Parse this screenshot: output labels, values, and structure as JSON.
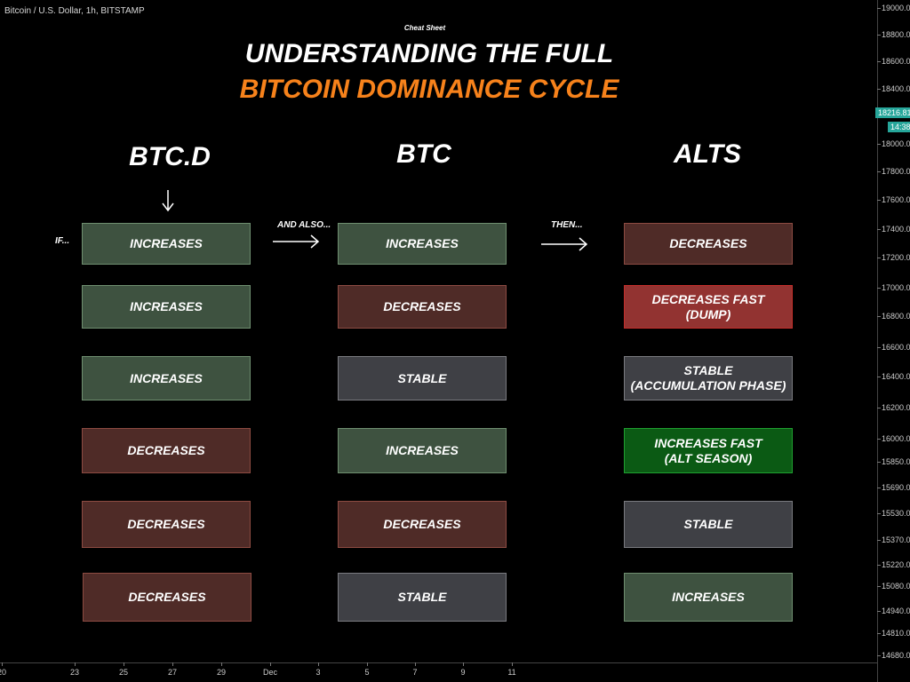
{
  "chart_header": {
    "symbol": "Bitcoin / U.S. Dollar, 1h, BITSTAMP"
  },
  "title": {
    "kicker": "Cheat Sheet",
    "line1": "UNDERSTANDING THE FULL",
    "line2": "BITCOIN DOMINANCE CYCLE",
    "line2_color": "#f7821b"
  },
  "columns": [
    "BTC.D",
    "BTC",
    "ALTS"
  ],
  "connectors": {
    "if": "IF...",
    "and_also": "AND ALSO...",
    "then": "THEN..."
  },
  "rows": [
    {
      "btcd": {
        "text": "INCREASES",
        "style": "green"
      },
      "btc": {
        "text": "INCREASES",
        "style": "green"
      },
      "alts": {
        "text": "DECREASES",
        "style": "brown"
      }
    },
    {
      "btcd": {
        "text": "INCREASES",
        "style": "green"
      },
      "btc": {
        "text": "DECREASES",
        "style": "brown"
      },
      "alts": {
        "text": "DECREASES FAST",
        "sub": "(DUMP)",
        "style": "red"
      }
    },
    {
      "btcd": {
        "text": "INCREASES",
        "style": "green"
      },
      "btc": {
        "text": "STABLE",
        "style": "grey"
      },
      "alts": {
        "text": "STABLE",
        "sub": "(ACCUMULATION PHASE)",
        "style": "grey"
      }
    },
    {
      "btcd": {
        "text": "DECREASES",
        "style": "brown"
      },
      "btc": {
        "text": "INCREASES",
        "style": "green"
      },
      "alts": {
        "text": "INCREASES FAST",
        "sub": "(ALT SEASON)",
        "style": "bgreen"
      }
    },
    {
      "btcd": {
        "text": "DECREASES",
        "style": "brown"
      },
      "btc": {
        "text": "DECREASES",
        "style": "brown"
      },
      "alts": {
        "text": "STABLE",
        "style": "grey"
      }
    },
    {
      "btcd": {
        "text": "DECREASES",
        "style": "brown"
      },
      "btc": {
        "text": "STABLE",
        "style": "grey"
      },
      "alts": {
        "text": "INCREASES",
        "style": "green"
      }
    }
  ],
  "price_axis": {
    "labels": [
      "19000.00",
      "18800.00",
      "18600.00",
      "18400.00",
      "18000.00",
      "17800.00",
      "17600.00",
      "17400.00",
      "17200.00",
      "17000.00",
      "16800.00",
      "16600.00",
      "16400.00",
      "16200.00",
      "16000.00",
      "15850.00",
      "15690.00",
      "15530.00",
      "15370.00",
      "15220.00",
      "15080.00",
      "14940.00",
      "14810.00",
      "14680.00"
    ],
    "current_price": "18216.81",
    "countdown": "14:38",
    "badge_color": "#26a69a"
  },
  "time_axis": {
    "labels": [
      "20",
      "23",
      "25",
      "27",
      "29",
      "Dec",
      "3",
      "5",
      "7",
      "9",
      "11"
    ]
  }
}
